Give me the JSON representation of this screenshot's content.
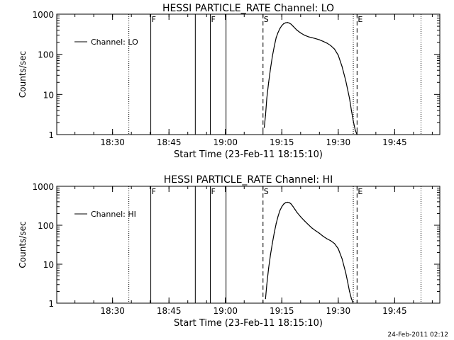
{
  "timestamp": "24-Feb-2011 02:12",
  "chart_data": [
    {
      "type": "line",
      "title": "HESSI PARTICLE_RATE Channel: LO",
      "xlabel": "Start Time (23-Feb-11 18:15:10)",
      "ylabel": "Counts/sec",
      "yscale": "log",
      "ylim": [
        1,
        1000
      ],
      "xlim": [
        "18:15:10",
        "19:57:00"
      ],
      "xticks": [
        "18:30",
        "18:45",
        "19:00",
        "19:15",
        "19:30",
        "19:45"
      ],
      "yticks": [
        "1",
        "10",
        "100",
        "1000"
      ],
      "legend": "top-left",
      "series": [
        {
          "name": "Channel: LO",
          "x": [
            "19:10:20",
            "19:10:40",
            "19:11:00",
            "19:11:30",
            "19:12:00",
            "19:12:30",
            "19:13:00",
            "19:13:30",
            "19:14:00",
            "19:14:30",
            "19:15:00",
            "19:15:30",
            "19:16:00",
            "19:16:30",
            "19:17:00",
            "19:17:30",
            "19:18:00",
            "19:19:00",
            "19:20:00",
            "19:21:00",
            "19:22:00",
            "19:23:00",
            "19:24:00",
            "19:25:00",
            "19:26:00",
            "19:27:00",
            "19:28:00",
            "19:29:00",
            "19:30:00",
            "19:31:00",
            "19:32:00",
            "19:33:00",
            "19:33:30",
            "19:34:00",
            "19:34:30",
            "19:35:00"
          ],
          "y": [
            1.5,
            3,
            8,
            20,
            45,
            90,
            160,
            260,
            350,
            440,
            520,
            580,
            610,
            620,
            600,
            560,
            500,
            400,
            340,
            300,
            275,
            260,
            245,
            230,
            210,
            190,
            165,
            135,
            95,
            50,
            22,
            8,
            4,
            2.2,
            1.3,
            1
          ]
        }
      ],
      "markers": [
        {
          "x": "18:34:20",
          "style": "dotted",
          "label": ""
        },
        {
          "x": "18:40:10",
          "style": "solid",
          "label": "F"
        },
        {
          "x": "18:52:00",
          "style": "solid",
          "label": ""
        },
        {
          "x": "18:56:00",
          "style": "solid",
          "label": "F"
        },
        {
          "x": "19:00:10",
          "style": "solid",
          "label": ""
        },
        {
          "x": "19:10:00",
          "style": "dashed",
          "label": "S"
        },
        {
          "x": "19:35:00",
          "style": "dashed",
          "label": "E"
        },
        {
          "x": "19:34:00",
          "style": "dotted",
          "label": ""
        },
        {
          "x": "19:52:00",
          "style": "dotted",
          "label": ""
        }
      ]
    },
    {
      "type": "line",
      "title": "HESSI PARTICLE_RATE Channel: HI",
      "xlabel": "Start Time (23-Feb-11 18:15:10)",
      "ylabel": "Counts/sec",
      "yscale": "log",
      "ylim": [
        1,
        1000
      ],
      "xlim": [
        "18:15:10",
        "19:57:00"
      ],
      "xticks": [
        "18:30",
        "18:45",
        "19:00",
        "19:15",
        "19:30",
        "19:45"
      ],
      "yticks": [
        "1",
        "10",
        "100",
        "1000"
      ],
      "legend": "top-left",
      "series": [
        {
          "name": "Channel: HI",
          "x": [
            "19:10:40",
            "19:11:00",
            "19:11:30",
            "19:12:00",
            "19:12:30",
            "19:13:00",
            "19:13:30",
            "19:14:00",
            "19:14:30",
            "19:15:00",
            "19:15:30",
            "19:16:00",
            "19:16:30",
            "19:17:00",
            "19:17:30",
            "19:18:00",
            "19:18:30",
            "19:19:00",
            "19:20:00",
            "19:21:00",
            "19:22:00",
            "19:23:00",
            "19:24:00",
            "19:25:00",
            "19:26:00",
            "19:27:00",
            "19:28:00",
            "19:29:00",
            "19:30:00",
            "19:31:00",
            "19:32:00",
            "19:32:30",
            "19:33:00",
            "19:33:30",
            "19:34:00"
          ],
          "y": [
            1.3,
            3,
            8,
            18,
            35,
            65,
            110,
            170,
            240,
            300,
            350,
            380,
            390,
            380,
            350,
            300,
            255,
            215,
            165,
            130,
            105,
            85,
            72,
            62,
            52,
            45,
            40,
            34,
            25,
            14,
            6,
            3.5,
            2,
            1.3,
            1
          ]
        }
      ],
      "markers": [
        {
          "x": "18:34:20",
          "style": "dotted",
          "label": ""
        },
        {
          "x": "18:40:10",
          "style": "solid",
          "label": "F"
        },
        {
          "x": "18:52:00",
          "style": "solid",
          "label": ""
        },
        {
          "x": "18:56:00",
          "style": "solid",
          "label": "F"
        },
        {
          "x": "19:00:10",
          "style": "solid",
          "label": ""
        },
        {
          "x": "19:10:00",
          "style": "dashed",
          "label": "S"
        },
        {
          "x": "19:35:00",
          "style": "dashed",
          "label": "E"
        },
        {
          "x": "19:34:00",
          "style": "dotted",
          "label": ""
        },
        {
          "x": "19:52:00",
          "style": "dotted",
          "label": ""
        }
      ]
    }
  ]
}
